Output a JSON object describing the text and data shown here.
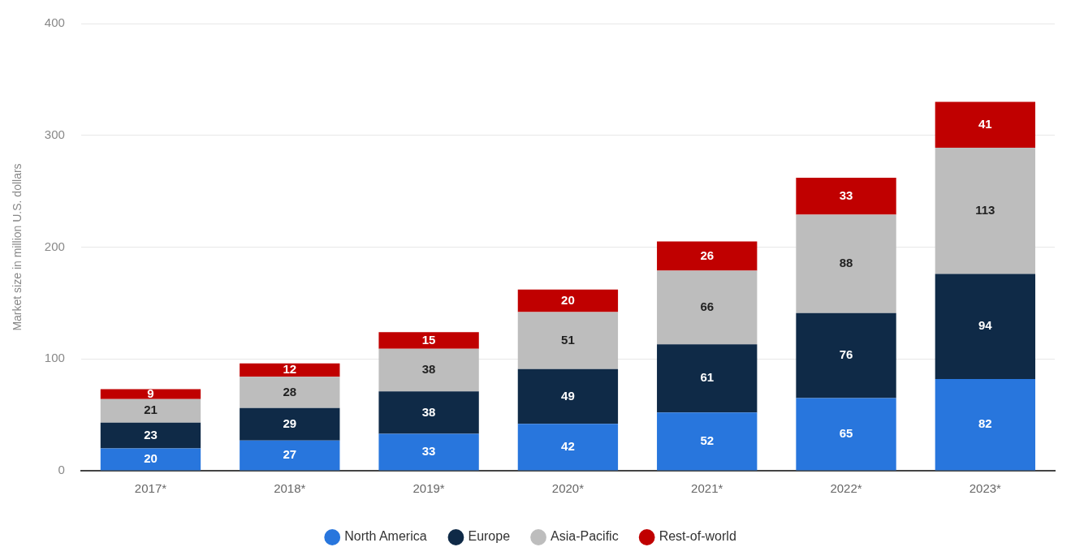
{
  "chart_data": {
    "type": "bar",
    "stacked": true,
    "ylabel": "Market size in million U.S. dollars",
    "categories": [
      "2017*",
      "2018*",
      "2019*",
      "2020*",
      "2021*",
      "2022*",
      "2023*"
    ],
    "series": [
      {
        "name": "North America",
        "color": "#2876dd",
        "values": [
          20,
          27,
          33,
          42,
          52,
          65,
          82
        ]
      },
      {
        "name": "Europe",
        "color": "#0f2a47",
        "values": [
          23,
          29,
          38,
          49,
          61,
          76,
          94
        ]
      },
      {
        "name": "Asia-Pacific",
        "color": "#bdbdbd",
        "values": [
          21,
          28,
          38,
          51,
          66,
          88,
          113
        ]
      },
      {
        "name": "Rest-of-world",
        "color": "#c00000",
        "values": [
          9,
          12,
          15,
          20,
          26,
          33,
          41
        ]
      }
    ],
    "ylim": [
      0,
      400
    ],
    "yticks": [
      0,
      100,
      200,
      300,
      400
    ],
    "grid": "y",
    "legend": "bottom",
    "data_labels": true
  }
}
